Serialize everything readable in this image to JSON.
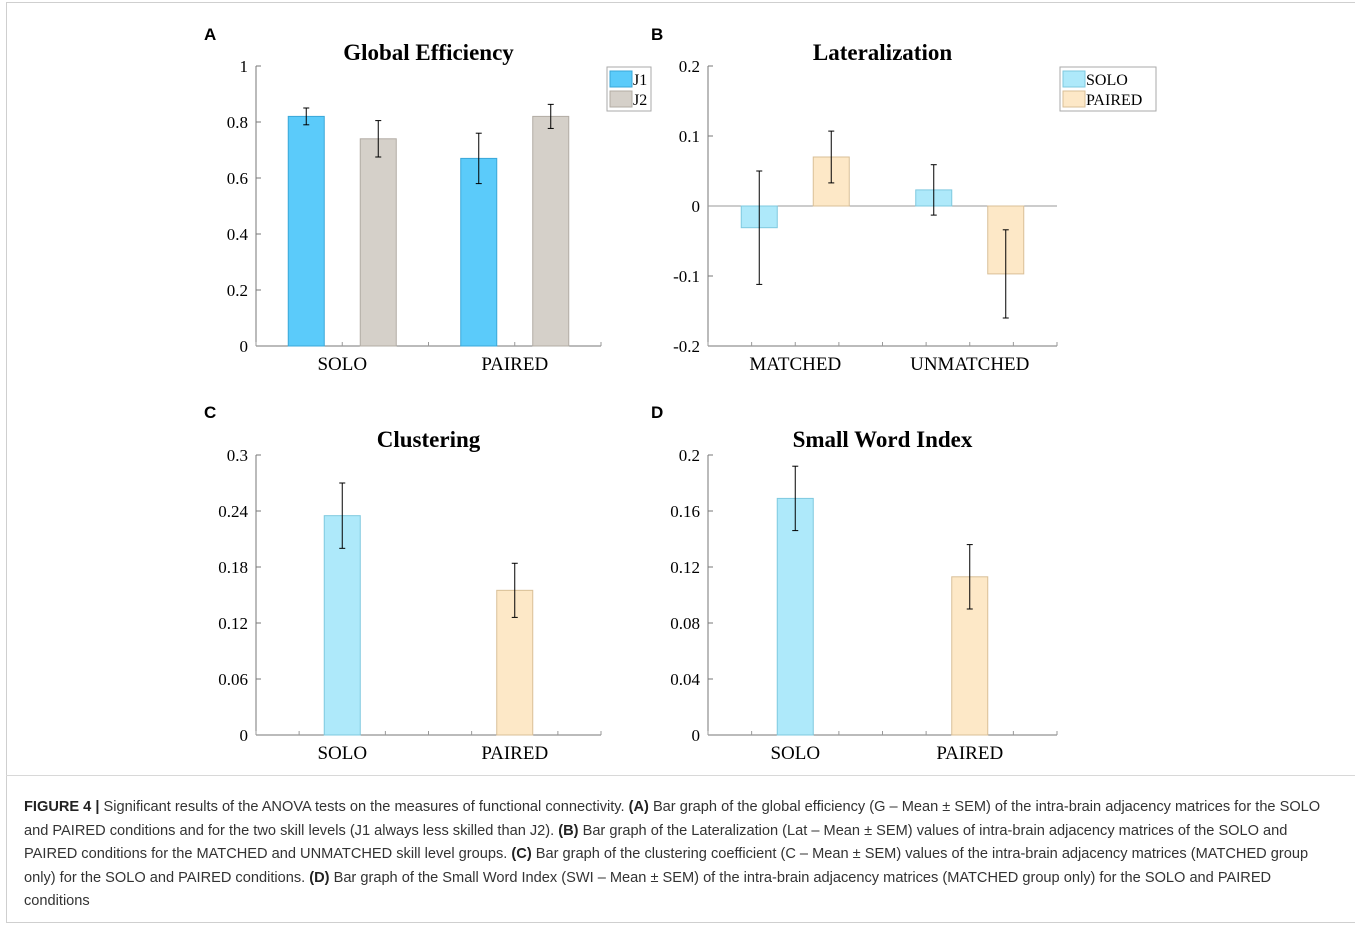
{
  "caption": {
    "label": "FIGURE 4 |",
    "parts": [
      {
        "t": "Significant results of the ANOVA tests on the measures of functional connectivity. ",
        "b": false
      },
      {
        "t": "(A)",
        "b": true
      },
      {
        "t": " Bar graph of the global efficiency (G – Mean ± SEM) of the intra-brain adjacency matrices for the SOLO and PAIRED conditions and for the two skill levels (J1 always less skilled than J2). ",
        "b": false
      },
      {
        "t": "(B)",
        "b": true
      },
      {
        "t": " Bar graph of the Lateralization (Lat – Mean ± SEM) values of intra-brain adjacency matrices of the SOLO and PAIRED conditions for the MATCHED and UNMATCHED skill level groups. ",
        "b": false
      },
      {
        "t": "(C)",
        "b": true
      },
      {
        "t": " Bar graph of the clustering coefficient (C – Mean ± SEM) values of the intra-brain adjacency matrices (MATCHED group only) for the SOLO and PAIRED conditions. ",
        "b": false
      },
      {
        "t": "(D)",
        "b": true
      },
      {
        "t": " Bar graph of the Small Word Index (SWI – Mean ± SEM) of the intra-brain adjacency matrices (MATCHED group only) for the SOLO and PAIRED conditions",
        "b": false
      }
    ]
  },
  "chart_data": [
    {
      "panel": "A",
      "type": "bar",
      "title": "Global Efficiency",
      "categories": [
        "SOLO",
        "PAIRED"
      ],
      "ylim": [
        0,
        1
      ],
      "yticks": [
        0,
        0.2,
        0.4,
        0.6,
        0.8,
        1
      ],
      "ytick_labels": [
        "0",
        "0.2",
        "0.4",
        "0.6",
        "0.8",
        "1"
      ],
      "legend": "top-right",
      "series": [
        {
          "name": "J1",
          "color": "#5bcbfa",
          "stroke": "#3aa7d8",
          "values": [
            0.82,
            0.67
          ],
          "err": [
            0.03,
            0.09
          ]
        },
        {
          "name": "J2",
          "color": "#d5d0c9",
          "stroke": "#b2aca4",
          "values": [
            0.74,
            0.82
          ],
          "err": [
            0.065,
            0.043
          ]
        }
      ]
    },
    {
      "panel": "B",
      "type": "bar",
      "title": "Lateralization",
      "categories": [
        "MATCHED",
        "UNMATCHED"
      ],
      "ylim": [
        -0.2,
        0.2
      ],
      "yticks": [
        -0.2,
        -0.1,
        0,
        0.1,
        0.2
      ],
      "ytick_labels": [
        "-0.2",
        "-0.1",
        "0",
        "0.1",
        "0.2"
      ],
      "legend": "top-right",
      "series": [
        {
          "name": "SOLO",
          "color": "#aee9fa",
          "stroke": "#7fc9df",
          "values": [
            -0.031,
            0.023
          ],
          "err": [
            0.081,
            0.036
          ]
        },
        {
          "name": "PAIRED",
          "color": "#fde8c7",
          "stroke": "#d9bf97",
          "values": [
            0.07,
            -0.097
          ],
          "err": [
            0.037,
            0.063
          ]
        }
      ]
    },
    {
      "panel": "C",
      "type": "bar",
      "title": "Clustering",
      "categories": [
        "SOLO",
        "PAIRED"
      ],
      "ylim": [
        0,
        0.3
      ],
      "yticks": [
        0,
        0.06,
        0.12,
        0.18,
        0.24,
        0.3
      ],
      "ytick_labels": [
        "0",
        "0.06",
        "0.12",
        "0.18",
        "0.24",
        "0.3"
      ],
      "series": [
        {
          "name": "",
          "colors": [
            "#aee9fa",
            "#fde8c7"
          ],
          "strokes": [
            "#7fc9df",
            "#d9bf97"
          ],
          "values": [
            0.235,
            0.155
          ],
          "err": [
            0.035,
            0.029
          ]
        }
      ]
    },
    {
      "panel": "D",
      "type": "bar",
      "title": "Small Word Index",
      "categories": [
        "SOLO",
        "PAIRED"
      ],
      "ylim": [
        0,
        0.2
      ],
      "yticks": [
        0,
        0.04,
        0.08,
        0.12,
        0.16,
        0.2
      ],
      "ytick_labels": [
        "0",
        "0.04",
        "0.08",
        "0.12",
        "0.16",
        "0.2"
      ],
      "series": [
        {
          "name": "",
          "colors": [
            "#aee9fa",
            "#fde8c7"
          ],
          "strokes": [
            "#7fc9df",
            "#d9bf97"
          ],
          "values": [
            0.169,
            0.113
          ],
          "err": [
            0.023,
            0.023
          ]
        }
      ]
    }
  ]
}
